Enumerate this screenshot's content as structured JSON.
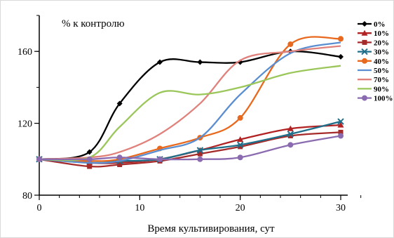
{
  "chart_data": {
    "type": "line",
    "annotation": "% к контролю",
    "xlabel": "Время культивирования, сут",
    "ylabel": "",
    "xlim": [
      0,
      30
    ],
    "ylim": [
      80,
      180
    ],
    "xticks": [
      0,
      10,
      20,
      30
    ],
    "yticks": [
      80,
      120,
      160
    ],
    "x": [
      0,
      5,
      8,
      12,
      16,
      20,
      25,
      30
    ],
    "grid": false,
    "legend_position": "right",
    "series": [
      {
        "name": "0%",
        "color": "#000000",
        "marker": "diamond",
        "values": [
          100,
          104,
          131,
          154,
          154,
          154,
          160,
          157
        ]
      },
      {
        "name": "10%",
        "color": "#b22222",
        "marker": "triangle",
        "values": [
          100,
          98,
          98,
          100,
          105,
          111,
          117,
          119
        ]
      },
      {
        "name": "20%",
        "color": "#a52a2a",
        "marker": "square",
        "values": [
          100,
          96,
          97,
          99,
          103,
          107,
          113,
          115
        ]
      },
      {
        "name": "30%",
        "color": "#1f6f8b",
        "marker": "x",
        "values": [
          100,
          99,
          99,
          100,
          105,
          108,
          114,
          121
        ]
      },
      {
        "name": "40%",
        "color": "#e8691e",
        "marker": "circle",
        "values": [
          100,
          99,
          100,
          106,
          112,
          123,
          164,
          167
        ]
      },
      {
        "name": "50%",
        "color": "#5b8ed0",
        "marker": "line",
        "values": [
          100,
          98,
          99,
          105,
          112,
          136,
          159,
          165
        ]
      },
      {
        "name": "70%",
        "color": "#e0817c",
        "marker": "line",
        "values": [
          100,
          101,
          104,
          114,
          131,
          155,
          160,
          163
        ]
      },
      {
        "name": "90%",
        "color": "#9bc75a",
        "marker": "line",
        "values": [
          100,
          101,
          118,
          137,
          136,
          140,
          148,
          152
        ]
      },
      {
        "name": "100%",
        "color": "#8b6bb0",
        "marker": "circle",
        "values": [
          100,
          100,
          101,
          100,
          100,
          101,
          108,
          113
        ]
      }
    ]
  }
}
